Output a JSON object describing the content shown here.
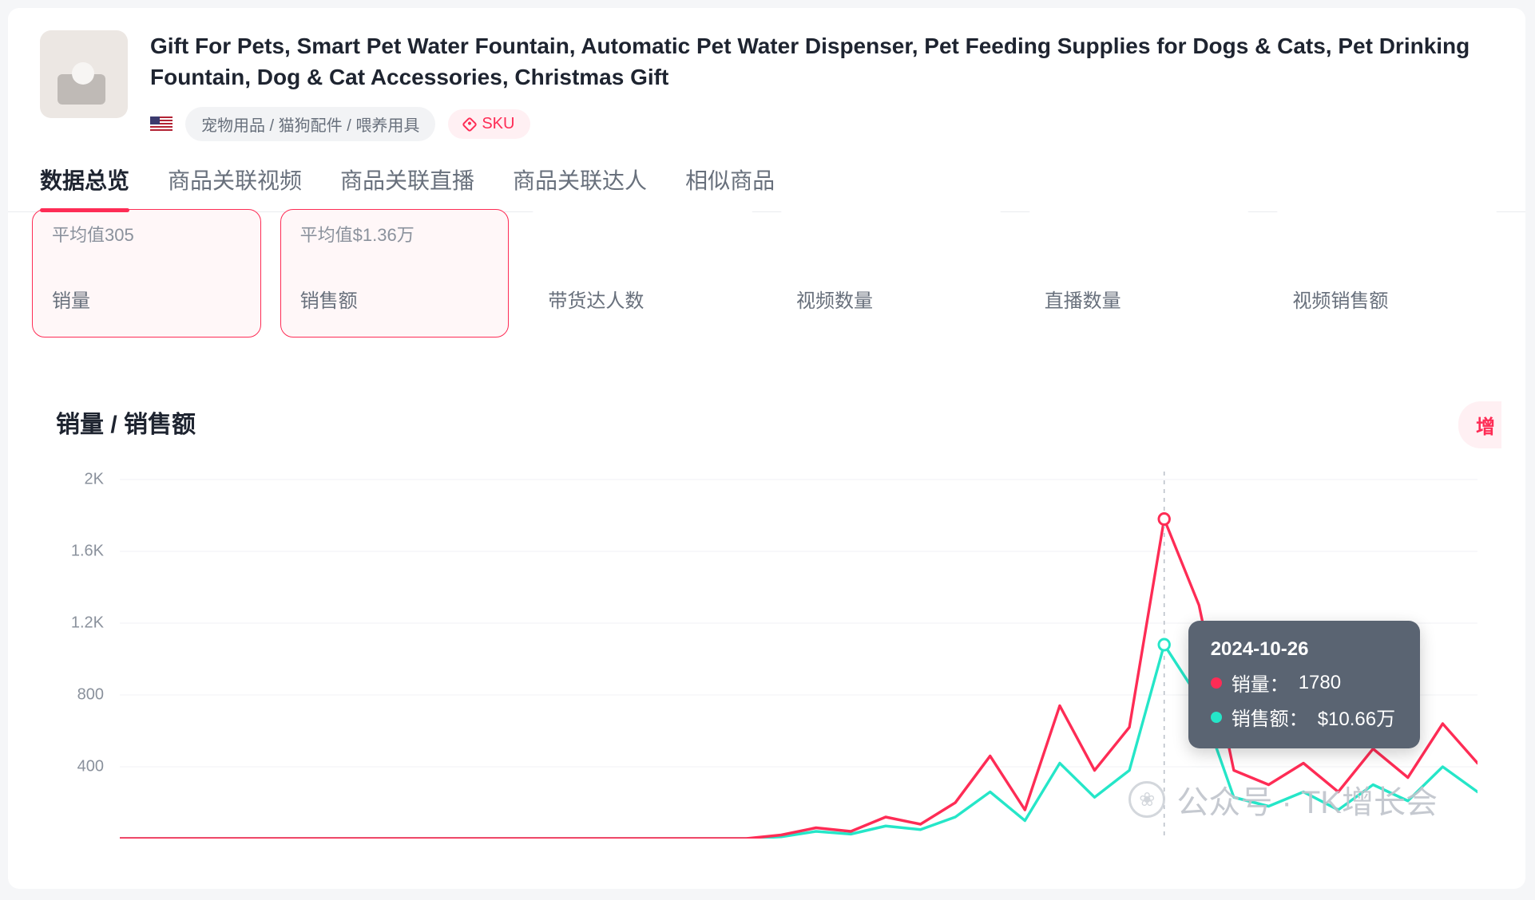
{
  "header": {
    "title": "Gift For Pets, Smart Pet Water Fountain, Automatic Pet Water Dispenser, Pet Feeding Supplies for Dogs & Cats, Pet Drinking Fountain, Dog & Cat Accessories, Christmas Gift",
    "category_tag": "宠物用品 / 猫狗配件 / 喂养用具",
    "sku_tag": "SKU",
    "flag_country": "US"
  },
  "tabs": [
    {
      "label": "数据总览",
      "active": true
    },
    {
      "label": "商品关联视频",
      "active": false
    },
    {
      "label": "商品关联直播",
      "active": false
    },
    {
      "label": "商品关联达人",
      "active": false
    },
    {
      "label": "相似商品",
      "active": false
    }
  ],
  "stats": [
    {
      "avg": "平均值305",
      "label": "销量",
      "selected": true
    },
    {
      "avg": "平均值$1.36万",
      "label": "销售额",
      "selected": true
    },
    {
      "avg": "",
      "label": "带货达人数",
      "selected": false
    },
    {
      "avg": "",
      "label": "视频数量",
      "selected": false
    },
    {
      "avg": "",
      "label": "直播数量",
      "selected": false
    },
    {
      "avg": "",
      "label": "视频销售额",
      "selected": false
    }
  ],
  "chart": {
    "title": "销量 / 销售额",
    "cta": "增",
    "type": "line",
    "y_ticks": [
      "2K",
      "1.6K",
      "1.2K",
      "800",
      "400"
    ],
    "y_tick_values": [
      2000,
      1600,
      1200,
      800,
      400
    ],
    "x_count": 40,
    "colors": {
      "sales": "#fe2c55",
      "revenue": "#25e6c8",
      "grid": "#f0f1f4",
      "axis_text": "#8a919c",
      "hover_line": "#b7bdc6",
      "background": "#ffffff",
      "tooltip_bg": "#5a6472"
    },
    "line_width": 3.5,
    "marker_radius": 7,
    "hover_index": 30,
    "series": {
      "sales": [
        0,
        0,
        0,
        0,
        0,
        0,
        0,
        0,
        0,
        0,
        0,
        0,
        0,
        0,
        0,
        0,
        0,
        0,
        0,
        20,
        60,
        40,
        120,
        80,
        200,
        460,
        160,
        740,
        380,
        620,
        1780,
        1300,
        380,
        300,
        420,
        260,
        500,
        340,
        640,
        420
      ],
      "revenue": [
        0,
        0,
        0,
        0,
        0,
        0,
        0,
        0,
        0,
        0,
        0,
        0,
        0,
        0,
        0,
        0,
        0,
        0,
        0,
        10,
        40,
        25,
        70,
        50,
        120,
        260,
        100,
        420,
        230,
        380,
        1080,
        780,
        230,
        180,
        260,
        160,
        300,
        210,
        400,
        260
      ]
    },
    "tooltip": {
      "date": "2024-10-26",
      "rows": [
        {
          "label": "销量：",
          "value": "1780",
          "color": "#fe2c55"
        },
        {
          "label": "销售额：",
          "value": "$10.66万",
          "color": "#25e6c8"
        }
      ]
    }
  },
  "watermark": {
    "text": "公众号 · TK增长会",
    "icon_glyph": "❀"
  }
}
